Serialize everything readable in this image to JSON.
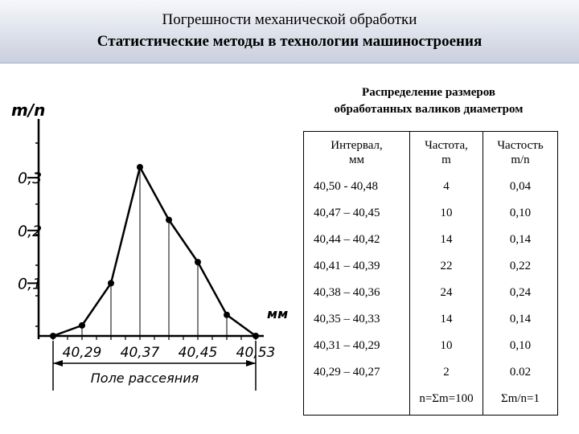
{
  "header": {
    "title": "Погрешности механической обработки",
    "subtitle": "Статистические методы в технологии машиностроения"
  },
  "table": {
    "caption_line1": "Распределение размеров",
    "caption_line2": "обработанных валиков диаметром",
    "headers": [
      [
        "Интервал,",
        "мм"
      ],
      [
        "Частота,",
        "m"
      ],
      [
        "Частость",
        "m/n"
      ]
    ],
    "rows": [
      [
        "40,50 - 40,48",
        "4",
        "0,04"
      ],
      [
        "40,47 – 40,45",
        "10",
        "0,10"
      ],
      [
        "40,44 – 40,42",
        "14",
        "0,14"
      ],
      [
        "40,41 – 40,39",
        "22",
        "0,22"
      ],
      [
        "40,38 – 40,36",
        "24",
        "0,24"
      ],
      [
        "40,35 – 40,33",
        "14",
        "0,14"
      ],
      [
        "40,31 – 40,29",
        "10",
        "0,10"
      ],
      [
        "40,29 – 40,27",
        "2",
        "0.02"
      ]
    ],
    "totals": [
      "",
      "n=Σm=100",
      "Σm/n=1"
    ]
  },
  "chart_data": {
    "type": "line",
    "ylabel": "m/n",
    "xlabel": "мм",
    "y_ticks": [
      "0,1",
      "0,2",
      "0,3"
    ],
    "x_ticks": [
      "40,29",
      "40,37",
      "40,45",
      "40,53"
    ],
    "x_caption": "Поле рассеяния",
    "x": [
      40.25,
      40.29,
      40.33,
      40.37,
      40.41,
      40.45,
      40.49,
      40.53
    ],
    "values": [
      0.0,
      0.02,
      0.1,
      0.32,
      0.22,
      0.14,
      0.04,
      0.0
    ],
    "xlim": [
      40.25,
      40.53
    ],
    "ylim": [
      0,
      0.35
    ]
  }
}
